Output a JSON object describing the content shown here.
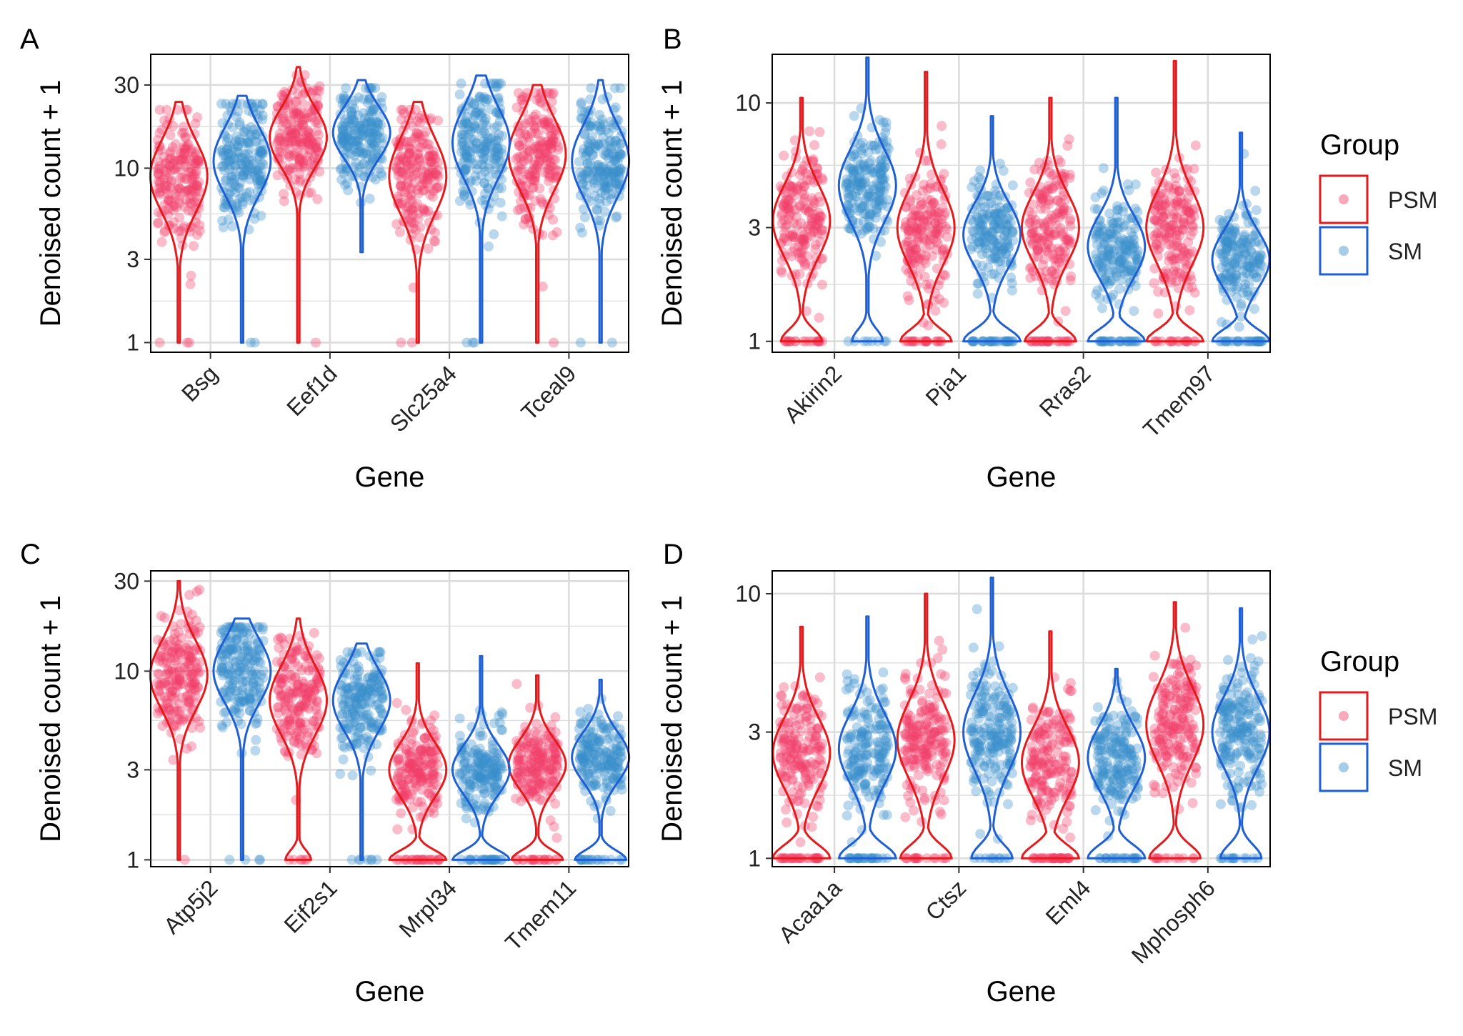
{
  "colors": {
    "psm_line": "#e41a1c",
    "psm_point": "#f0406a",
    "sm_line": "#1e5fd4",
    "sm_point": "#3a90cc",
    "grid": "#dcdcdc"
  },
  "legend": {
    "title": "Group",
    "entries": [
      "PSM",
      "SM"
    ]
  },
  "chart_data": [
    {
      "panel": "A",
      "type": "violin",
      "xlabel": "Gene",
      "ylabel": "Denoised count + 1",
      "yscale": "log10",
      "ylim": [
        0.88,
        45
      ],
      "yticks": [
        1,
        3,
        10,
        30
      ],
      "categories": [
        "Bsg",
        "Eef1d",
        "Slc25a4",
        "Tceal9"
      ],
      "series": [
        {
          "name": "PSM",
          "min": [
            1,
            1,
            1,
            1
          ],
          "median": [
            9,
            15,
            9,
            12
          ],
          "max": [
            24,
            38,
            24,
            30
          ],
          "spread": [
            0.34,
            0.28,
            0.36,
            0.34
          ],
          "zero_fraction": [
            0.01,
            0.01,
            0.02,
            0.01
          ]
        },
        {
          "name": "SM",
          "min": [
            1,
            3.3,
            1,
            1
          ],
          "median": [
            11,
            16,
            14,
            11
          ],
          "max": [
            26,
            32,
            34,
            32
          ],
          "spread": [
            0.32,
            0.25,
            0.34,
            0.34
          ],
          "zero_fraction": [
            0.01,
            0,
            0.01,
            0.01
          ]
        }
      ]
    },
    {
      "panel": "B",
      "type": "violin",
      "xlabel": "Gene",
      "ylabel": "Denoised count + 1",
      "yscale": "log10",
      "ylim": [
        0.9,
        16
      ],
      "yticks": [
        1,
        3,
        10
      ],
      "categories": [
        "Akirin2",
        "Pja1",
        "Rras2",
        "Tmem97"
      ],
      "series": [
        {
          "name": "PSM",
          "min": [
            1,
            1,
            1,
            1
          ],
          "median": [
            3.2,
            3,
            3,
            3
          ],
          "max": [
            10.5,
            13.5,
            10.5,
            15
          ],
          "spread": [
            0.25,
            0.26,
            0.24,
            0.26
          ],
          "zero_fraction": [
            0.08,
            0.1,
            0.1,
            0.12
          ]
        },
        {
          "name": "SM",
          "min": [
            1,
            1,
            1,
            1
          ],
          "median": [
            4.5,
            2.8,
            2.5,
            2.2
          ],
          "max": [
            15.5,
            8.8,
            10.5,
            7.5
          ],
          "spread": [
            0.25,
            0.22,
            0.22,
            0.2
          ],
          "zero_fraction": [
            0.06,
            0.15,
            0.14,
            0.16
          ]
        }
      ]
    },
    {
      "panel": "C",
      "type": "violin",
      "xlabel": "Gene",
      "ylabel": "Denoised count + 1",
      "yscale": "log10",
      "ylim": [
        0.92,
        34
      ],
      "yticks": [
        1,
        3,
        10,
        30
      ],
      "categories": [
        "Atp5j2",
        "Eif2s1",
        "Mrpl34",
        "Tmem11"
      ],
      "series": [
        {
          "name": "PSM",
          "min": [
            1,
            1,
            1,
            1
          ],
          "median": [
            9.5,
            7,
            3,
            3.2
          ],
          "max": [
            30,
            19,
            11,
            9.5
          ],
          "spread": [
            0.3,
            0.3,
            0.24,
            0.22
          ],
          "zero_fraction": [
            0.02,
            0.05,
            0.12,
            0.1
          ]
        },
        {
          "name": "SM",
          "min": [
            1,
            1,
            1,
            1
          ],
          "median": [
            10,
            7,
            3,
            3.5
          ],
          "max": [
            19,
            14,
            12,
            9
          ],
          "spread": [
            0.28,
            0.27,
            0.22,
            0.22
          ],
          "zero_fraction": [
            0.02,
            0.04,
            0.12,
            0.1
          ]
        }
      ]
    },
    {
      "panel": "D",
      "type": "violin",
      "xlabel": "Gene",
      "ylabel": "Denoised count + 1",
      "yscale": "log10",
      "ylim": [
        0.93,
        12.2
      ],
      "yticks": [
        1,
        3,
        10
      ],
      "categories": [
        "Acaa1a",
        "Ctsz",
        "Eml4",
        "Mphosph6"
      ],
      "series": [
        {
          "name": "PSM",
          "min": [
            1,
            1,
            1,
            1
          ],
          "median": [
            2.5,
            2.8,
            2.3,
            3.2
          ],
          "max": [
            7.5,
            10,
            7.2,
            9.3
          ],
          "spread": [
            0.22,
            0.24,
            0.22,
            0.24
          ],
          "zero_fraction": [
            0.14,
            0.1,
            0.16,
            0.1
          ]
        },
        {
          "name": "SM",
          "min": [
            1,
            1,
            1,
            1
          ],
          "median": [
            2.6,
            3,
            2.4,
            3
          ],
          "max": [
            8.2,
            11.5,
            5.2,
            8.8
          ],
          "spread": [
            0.22,
            0.24,
            0.2,
            0.22
          ],
          "zero_fraction": [
            0.12,
            0.08,
            0.12,
            0.08
          ]
        }
      ]
    }
  ]
}
